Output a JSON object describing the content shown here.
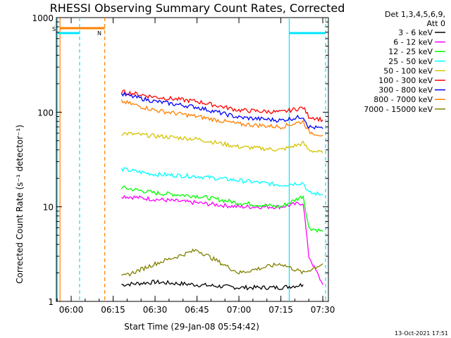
{
  "chart_data": {
    "type": "line",
    "title": "RHESSI Observing Summary Count Rates, Corrected",
    "ylabel": "Corrected Count Rate (s⁻¹ detector⁻¹)",
    "xlabel": "Start Time (29-Jan-08 05:54:42)",
    "yscale": "log",
    "ylim": [
      1,
      1000
    ],
    "xlim_minutes_label_units": [
      "05:54:42",
      "07:32:00"
    ],
    "x_ticks": [
      "06:00",
      "06:15",
      "06:30",
      "06:45",
      "07:00",
      "07:15",
      "07:30"
    ],
    "y_ticks": [
      "1",
      "10",
      "100",
      "1000"
    ],
    "legend_header": [
      "Det 1,3,4,5,6,9,",
      "Att 0"
    ],
    "legend_placement": "right",
    "footer_date": "13-Oct-2021 17:51",
    "flag_labels": {
      "saa": "S",
      "night": "N"
    },
    "vertical_markers": [
      {
        "time": "05:55",
        "color": "#00e5ff",
        "style": "solid"
      },
      {
        "time": "05:56",
        "color": "#ff8000",
        "style": "solid"
      },
      {
        "time": "06:03",
        "color": "#00e5ff",
        "style": "dashed"
      },
      {
        "time": "06:12",
        "color": "#ff8000",
        "style": "dashed"
      },
      {
        "time": "07:18",
        "color": "#00e5ff",
        "style": "solid"
      },
      {
        "time": "07:31",
        "color": "#00e5ff",
        "style": "dashed"
      }
    ],
    "series": [
      {
        "name": "3 - 6 keV",
        "color": "#000000",
        "times": [
          "06:18",
          "06:30",
          "06:45",
          "07:00",
          "07:15",
          "07:23"
        ],
        "values": [
          1.5,
          1.6,
          1.5,
          1.4,
          1.4,
          1.5
        ]
      },
      {
        "name": "6 - 12 keV",
        "color": "#ff00ff",
        "times": [
          "06:18",
          "06:30",
          "06:45",
          "07:00",
          "07:15",
          "07:23",
          "07:25",
          "07:30"
        ],
        "values": [
          13,
          12,
          11,
          10,
          10,
          11,
          3,
          1.5
        ]
      },
      {
        "name": "12 - 25 keV",
        "color": "#00ff00",
        "times": [
          "06:18",
          "06:30",
          "06:45",
          "07:00",
          "07:15",
          "07:23",
          "07:25",
          "07:30"
        ],
        "values": [
          16,
          14,
          13,
          11,
          10,
          13,
          6,
          5.5
        ]
      },
      {
        "name": "25 - 50 keV",
        "color": "#00ffff",
        "times": [
          "06:18",
          "06:30",
          "06:45",
          "07:00",
          "07:15",
          "07:23",
          "07:25",
          "07:30"
        ],
        "values": [
          25,
          22,
          21,
          19,
          17,
          18,
          14,
          13.5
        ]
      },
      {
        "name": "50 - 100 keV",
        "color": "#d4c400",
        "times": [
          "06:18",
          "06:30",
          "06:45",
          "07:00",
          "07:15",
          "07:23",
          "07:25",
          "07:30"
        ],
        "values": [
          60,
          56,
          52,
          43,
          40,
          47,
          40,
          37
        ]
      },
      {
        "name": "100 - 300 keV",
        "color": "#ff0000",
        "times": [
          "06:18",
          "06:30",
          "06:45",
          "07:00",
          "07:15",
          "07:23",
          "07:25",
          "07:30"
        ],
        "values": [
          165,
          145,
          130,
          105,
          100,
          112,
          90,
          83
        ]
      },
      {
        "name": "300 - 800 keV",
        "color": "#0000ff",
        "times": [
          "06:18",
          "06:30",
          "06:45",
          "07:00",
          "07:15",
          "07:23",
          "07:25",
          "07:30"
        ],
        "values": [
          155,
          130,
          113,
          88,
          82,
          90,
          70,
          67
        ]
      },
      {
        "name": "800 - 7000 keV",
        "color": "#ff8000",
        "times": [
          "06:18",
          "06:30",
          "06:45",
          "07:00",
          "07:15",
          "07:23",
          "07:25",
          "07:30"
        ],
        "values": [
          130,
          105,
          90,
          75,
          70,
          80,
          62,
          57
        ]
      },
      {
        "name": "7000 - 15000 keV",
        "color": "#808000",
        "times": [
          "06:18",
          "06:30",
          "06:45",
          "07:00",
          "07:15",
          "07:23",
          "07:30"
        ],
        "values": [
          1.8,
          2.5,
          3.5,
          2.0,
          2.5,
          2.0,
          2.5
        ]
      }
    ]
  }
}
